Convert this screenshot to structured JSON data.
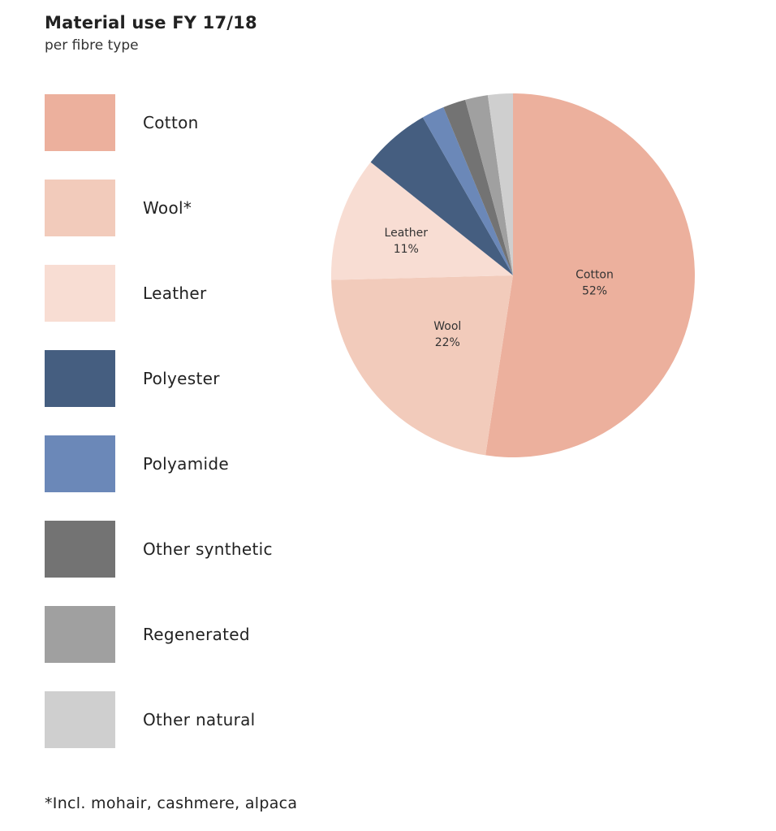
{
  "chart_data": {
    "type": "pie",
    "title": "Material use FY 17/18",
    "subtitle": "per fibre type",
    "slices": [
      {
        "name": "Cotton",
        "value": 52,
        "color": "#ecb09d",
        "label_name": "Cotton",
        "label_value": "52%"
      },
      {
        "name": "Wool*",
        "value": 22,
        "color": "#f2cbbb",
        "label_name": "Wool",
        "label_value": "22%"
      },
      {
        "name": "Leather",
        "value": 11,
        "color": "#f8ddd3",
        "label_name": "Leather",
        "label_value": "11%"
      },
      {
        "name": "Polyester",
        "value": 6,
        "color": "#455e80",
        "label_name": "",
        "label_value": ""
      },
      {
        "name": "Polyamide",
        "value": 2,
        "color": "#6b88b8",
        "label_name": "",
        "label_value": ""
      },
      {
        "name": "Other synthetic",
        "value": 2,
        "color": "#737373",
        "label_name": "",
        "label_value": ""
      },
      {
        "name": "Regenerated",
        "value": 2,
        "color": "#a0a0a0",
        "label_name": "",
        "label_value": ""
      },
      {
        "name": "Other natural",
        "value": 2.2,
        "color": "#cfcfcf",
        "label_name": "",
        "label_value": ""
      }
    ],
    "legend_placement": "left",
    "footnote": "*Incl. mohair, cashmere, alpaca"
  }
}
